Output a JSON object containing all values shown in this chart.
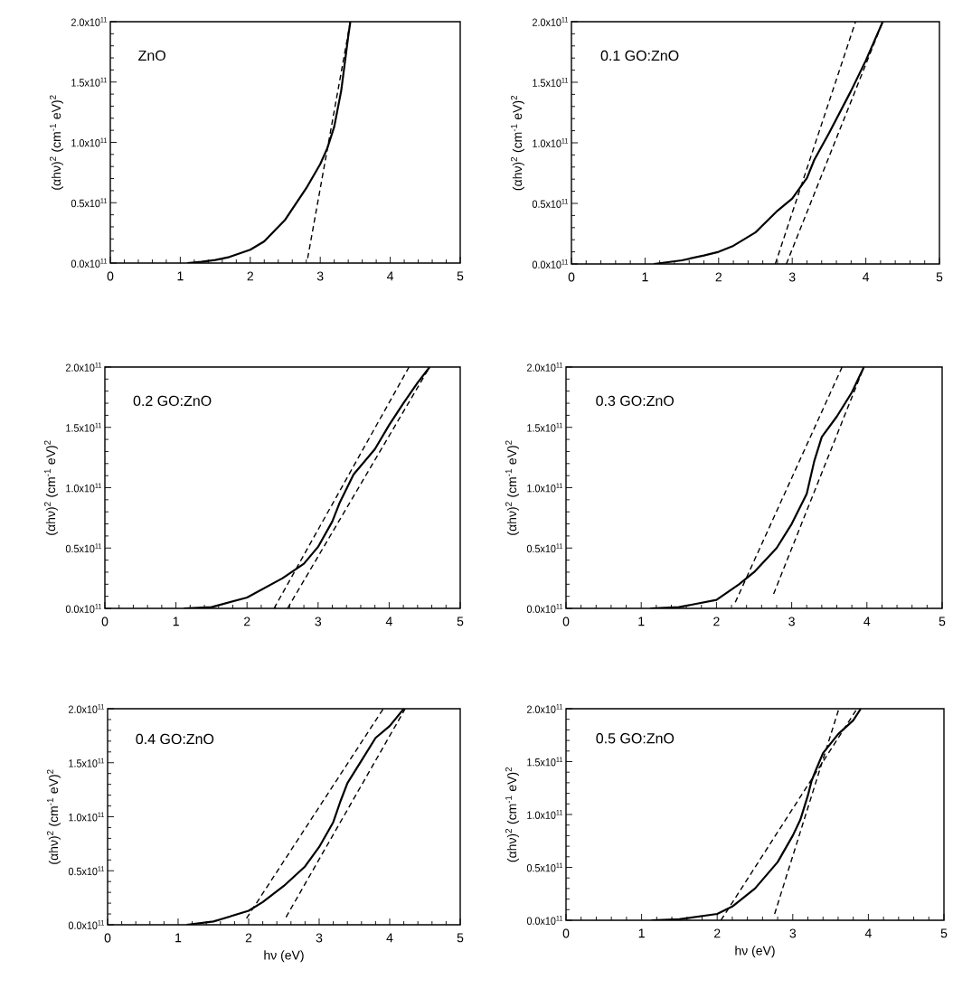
{
  "chart_data": [
    {
      "type": "line",
      "title": "ZnO",
      "ylabel": "(αhν)$^{2}$ (cm$^{-1}$ eV)$^{2}$",
      "xlim": [
        0,
        5
      ],
      "xticks": [
        0,
        1,
        2,
        3,
        4,
        5
      ],
      "ylim": [
        0,
        200000000000.0
      ],
      "yticks": [
        {
          "value": 0,
          "label": "0.0x10$^{11}$"
        },
        {
          "value": 50000000000.0,
          "label": "0.5x10$^{11}$"
        },
        {
          "value": 100000000000.0,
          "label": "1.0x10$^{11}$"
        },
        {
          "value": 150000000000.0,
          "label": "1.5x10$^{11}$"
        },
        {
          "value": 200000000000.0,
          "label": "2.0x10$^{11}$"
        }
      ],
      "grid": false,
      "legend": false,
      "marker": "none",
      "series": [
        {
          "color": "#000000",
          "line_style": "solid",
          "x": [
            1.1,
            1.3,
            1.5,
            1.7,
            2.0,
            2.2,
            2.5,
            2.8,
            3.0,
            3.1,
            3.2,
            3.3,
            3.4,
            3.43
          ],
          "values": [
            0,
            1000000000.0,
            2500000000.0,
            5000000000.0,
            11000000000.0,
            18000000000.0,
            36000000000.0,
            62000000000.0,
            82000000000.0,
            95000000000.0,
            113000000000.0,
            143000000000.0,
            188000000000.0,
            200000000000.0
          ]
        },
        {
          "color": "#000000",
          "line_style": "dashed",
          "x": [
            2.82,
            3.43
          ],
          "values": [
            4000000000.0,
            200000000000.0
          ]
        }
      ]
    },
    {
      "type": "line",
      "title": "0.1 GO:ZnO",
      "ylabel": "(αhν)$^{2}$ (cm$^{-1}$ eV)$^{2}$",
      "xlim": [
        0,
        5
      ],
      "xticks": [
        0,
        1,
        2,
        3,
        4,
        5
      ],
      "ylim": [
        0,
        200000000000.0
      ],
      "yticks": [
        {
          "value": 0,
          "label": "0.0x10$^{11}$"
        },
        {
          "value": 50000000000.0,
          "label": "0.5x10$^{11}$"
        },
        {
          "value": 100000000000.0,
          "label": "1.0x10$^{11}$"
        },
        {
          "value": 150000000000.0,
          "label": "1.5x10$^{11}$"
        },
        {
          "value": 200000000000.0,
          "label": "2.0x10$^{11}$"
        }
      ],
      "grid": false,
      "legend": false,
      "marker": "none",
      "series": [
        {
          "color": "#000000",
          "line_style": "solid",
          "x": [
            1.12,
            1.5,
            1.8,
            2.0,
            2.2,
            2.5,
            2.8,
            3.0,
            3.2,
            3.3,
            3.5,
            3.8,
            4.0,
            4.23
          ],
          "values": [
            0,
            3000000000.0,
            7000000000.0,
            10000000000.0,
            15000000000.0,
            26000000000.0,
            44000000000.0,
            54000000000.0,
            71000000000.0,
            86000000000.0,
            108000000000.0,
            143000000000.0,
            168000000000.0,
            200000000000.0
          ]
        },
        {
          "color": "#000000",
          "line_style": "dashed",
          "x": [
            2.77,
            3.86
          ],
          "values": [
            0,
            200000000000.0
          ]
        },
        {
          "color": "#000000",
          "line_style": "dashed",
          "x": [
            2.92,
            4.23
          ],
          "values": [
            0,
            200000000000.0
          ]
        }
      ]
    },
    {
      "type": "line",
      "title": "0.2 GO:ZnO",
      "ylabel": "(αhν)$^{2}$ (cm$^{-1}$ eV)$^{2}$",
      "xlim": [
        0,
        5
      ],
      "xticks": [
        0,
        1,
        2,
        3,
        4,
        5
      ],
      "ylim": [
        0,
        200000000000.0
      ],
      "yticks": [
        {
          "value": 0,
          "label": "0.0x10$^{11}$"
        },
        {
          "value": 50000000000.0,
          "label": "0.5x10$^{11}$"
        },
        {
          "value": 100000000000.0,
          "label": "1.0x10$^{11}$"
        },
        {
          "value": 150000000000.0,
          "label": "1.5x10$^{11}$"
        },
        {
          "value": 200000000000.0,
          "label": "2.0x10$^{11}$"
        }
      ],
      "grid": false,
      "legend": false,
      "marker": "none",
      "series": [
        {
          "color": "#000000",
          "line_style": "solid",
          "x": [
            1.11,
            1.5,
            2.0,
            2.5,
            2.8,
            3.0,
            3.2,
            3.3,
            3.5,
            3.8,
            4.0,
            4.2,
            4.4,
            4.57
          ],
          "values": [
            0,
            1000000000.0,
            9000000000.0,
            25000000000.0,
            37000000000.0,
            51000000000.0,
            72000000000.0,
            87000000000.0,
            111000000000.0,
            132000000000.0,
            152000000000.0,
            170000000000.0,
            187000000000.0,
            200000000000.0
          ]
        },
        {
          "color": "#000000",
          "line_style": "dashed",
          "x": [
            2.38,
            4.28
          ],
          "values": [
            0,
            200000000000.0
          ]
        },
        {
          "color": "#000000",
          "line_style": "dashed",
          "x": [
            2.57,
            4.57
          ],
          "values": [
            0,
            200000000000.0
          ]
        }
      ]
    },
    {
      "type": "line",
      "title": "0.3 GO:ZnO",
      "ylabel": "(αhν)$^{2}$ (cm$^{-1}$ eV)$^{2}$",
      "xlim": [
        0,
        5
      ],
      "xticks": [
        0,
        1,
        2,
        3,
        4,
        5
      ],
      "ylim": [
        0,
        200000000000.0
      ],
      "yticks": [
        {
          "value": 0,
          "label": "0.0x10$^{11}$"
        },
        {
          "value": 50000000000.0,
          "label": "0.5x10$^{11}$"
        },
        {
          "value": 100000000000.0,
          "label": "1.0x10$^{11}$"
        },
        {
          "value": 150000000000.0,
          "label": "1.5x10$^{11}$"
        },
        {
          "value": 200000000000.0,
          "label": "2.0x10$^{11}$"
        }
      ],
      "grid": false,
      "legend": false,
      "marker": "none",
      "series": [
        {
          "color": "#000000",
          "line_style": "solid",
          "x": [
            1.12,
            1.5,
            2.0,
            2.3,
            2.5,
            2.8,
            3.0,
            3.2,
            3.3,
            3.4,
            3.6,
            3.8,
            3.96
          ],
          "values": [
            0,
            1000000000.0,
            7000000000.0,
            20000000000.0,
            30000000000.0,
            50000000000.0,
            70000000000.0,
            95000000000.0,
            122000000000.0,
            142000000000.0,
            159000000000.0,
            179000000000.0,
            200000000000.0
          ]
        },
        {
          "color": "#000000",
          "line_style": "dashed",
          "x": [
            2.25,
            3.67
          ],
          "values": [
            5000000000.0,
            200000000000.0
          ]
        },
        {
          "color": "#000000",
          "line_style": "dashed",
          "x": [
            2.76,
            3.96
          ],
          "values": [
            12000000000.0,
            200000000000.0
          ]
        }
      ]
    },
    {
      "type": "line",
      "title": "0.4 GO:ZnO",
      "xlabel": "hν (eV)",
      "ylabel": "(αhν)$^{2}$ (cm$^{-1}$ eV)$^{2}$",
      "xlim": [
        0,
        5
      ],
      "xticks": [
        0,
        1,
        2,
        3,
        4,
        5
      ],
      "ylim": [
        0,
        200000000000.0
      ],
      "yticks": [
        {
          "value": 0,
          "label": "0.0x10$^{11}$"
        },
        {
          "value": 50000000000.0,
          "label": "0.5x10$^{11}$"
        },
        {
          "value": 100000000000.0,
          "label": "1.0x10$^{11}$"
        },
        {
          "value": 150000000000.0,
          "label": "1.5x10$^{11}$"
        },
        {
          "value": 200000000000.0,
          "label": "2.0x10$^{11}$"
        }
      ],
      "grid": false,
      "legend": false,
      "marker": "none",
      "series": [
        {
          "color": "#000000",
          "line_style": "solid",
          "x": [
            1.12,
            1.5,
            2.0,
            2.2,
            2.5,
            2.8,
            3.0,
            3.2,
            3.3,
            3.4,
            3.6,
            3.8,
            4.0,
            4.2
          ],
          "values": [
            0,
            3000000000.0,
            13000000000.0,
            21000000000.0,
            36000000000.0,
            54000000000.0,
            72000000000.0,
            95000000000.0,
            114000000000.0,
            131000000000.0,
            152000000000.0,
            173000000000.0,
            184000000000.0,
            200000000000.0
          ]
        },
        {
          "color": "#000000",
          "line_style": "dashed",
          "x": [
            1.97,
            3.91
          ],
          "values": [
            6000000000.0,
            200000000000.0
          ]
        },
        {
          "color": "#000000",
          "line_style": "dashed",
          "x": [
            2.53,
            4.22
          ],
          "values": [
            7000000000.0,
            200000000000.0
          ]
        }
      ]
    },
    {
      "type": "line",
      "title": "0.5 GO:ZnO",
      "xlabel": "hν (eV)",
      "ylabel": "(αhν)$^{2}$ (cm$^{-1}$ eV)$^{2}$",
      "xlim": [
        0,
        5
      ],
      "xticks": [
        0,
        1,
        2,
        3,
        4,
        5
      ],
      "ylim": [
        0,
        200000000000.0
      ],
      "yticks": [
        {
          "value": 0,
          "label": "0.0x10$^{11}$"
        },
        {
          "value": 50000000000.0,
          "label": "0.5x10$^{11}$"
        },
        {
          "value": 100000000000.0,
          "label": "1.0x10$^{11}$"
        },
        {
          "value": 150000000000.0,
          "label": "1.5x10$^{11}$"
        },
        {
          "value": 200000000000.0,
          "label": "2.0x10$^{11}$"
        }
      ],
      "grid": false,
      "legend": false,
      "marker": "none",
      "series": [
        {
          "color": "#000000",
          "line_style": "solid",
          "x": [
            1.13,
            1.5,
            2.0,
            2.2,
            2.5,
            2.8,
            3.0,
            3.1,
            3.2,
            3.25,
            3.3,
            3.4,
            3.6,
            3.8,
            3.9
          ],
          "values": [
            0,
            1000000000.0,
            6000000000.0,
            13000000000.0,
            30000000000.0,
            55000000000.0,
            80000000000.0,
            95000000000.0,
            118000000000.0,
            132000000000.0,
            141000000000.0,
            158000000000.0,
            176000000000.0,
            189000000000.0,
            200000000000.0
          ]
        },
        {
          "color": "#000000",
          "line_style": "dashed",
          "x": [
            2.05,
            3.85
          ],
          "values": [
            0,
            200000000000.0
          ]
        },
        {
          "color": "#000000",
          "line_style": "dashed",
          "x": [
            2.76,
            3.61
          ],
          "values": [
            6000000000.0,
            200000000000.0
          ]
        }
      ]
    }
  ]
}
